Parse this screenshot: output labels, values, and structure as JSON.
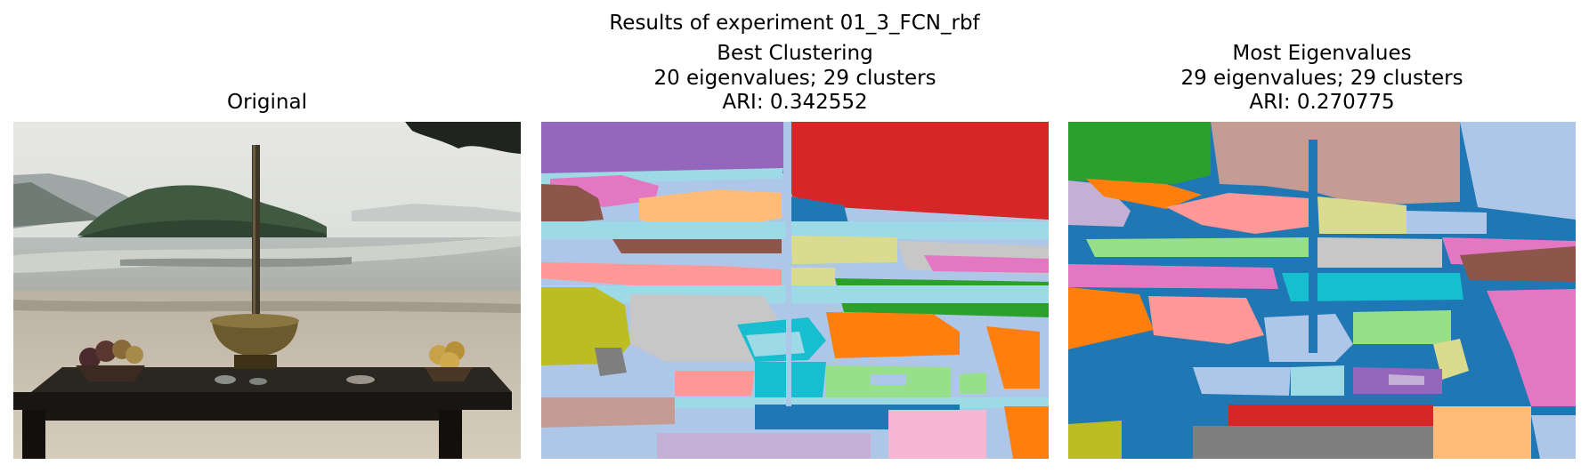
{
  "figure": {
    "suptitle": "Results of experiment 01_3_FCN_rbf"
  },
  "panels": [
    {
      "lines": [
        "Original"
      ],
      "kind": "photo"
    },
    {
      "lines": [
        "Best Clustering",
        "20 eigenvalues; 29 clusters",
        "ARI: 0.342552"
      ],
      "kind": "segmentation",
      "eigenvalues": 20,
      "clusters": 29,
      "ari": 0.342552
    },
    {
      "lines": [
        "Most Eigenvalues",
        "29 eigenvalues; 29 clusters",
        "ARI: 0.270775"
      ],
      "kind": "segmentation",
      "eigenvalues": 29,
      "clusters": 29,
      "ari": 0.270775
    }
  ],
  "palette": {
    "blue": "#1f77b4",
    "orange": "#ff7f0e",
    "green": "#2ca02c",
    "red": "#d62728",
    "purple": "#9467bd",
    "brown": "#8c564b",
    "pink": "#e377c2",
    "gray": "#7f7f7f",
    "olive": "#bcbd22",
    "cyan": "#17becf",
    "light_blue": "#aec7e8",
    "light_orange": "#ffbb78",
    "light_green": "#98df8a",
    "light_red": "#ff9896",
    "light_purple": "#c5b0d5",
    "light_brown": "#c49c94",
    "light_pink": "#f7b6d2",
    "light_gray": "#c7c7c7",
    "light_olive": "#dbdb8d",
    "light_cyan": "#9edae5"
  }
}
